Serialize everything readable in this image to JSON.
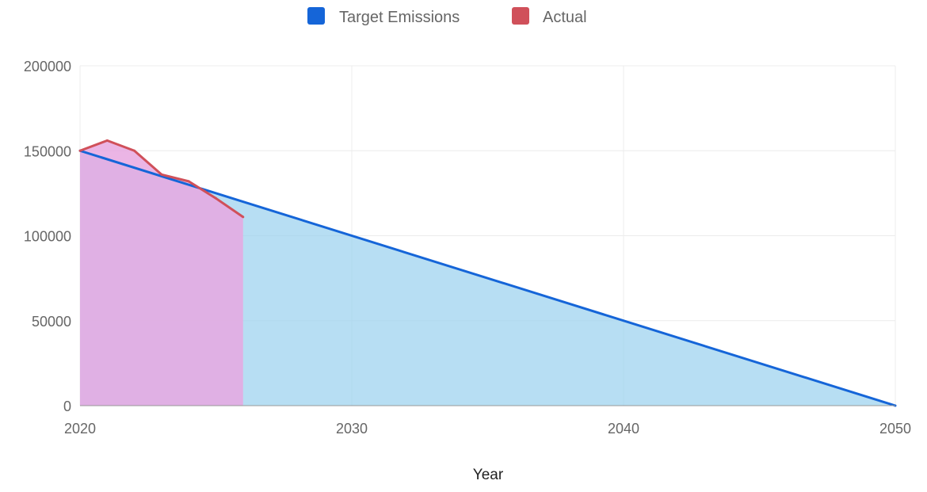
{
  "chart_data": {
    "type": "area",
    "title": "",
    "xlabel": "Year",
    "ylabel": "",
    "xlim": [
      2020,
      2050
    ],
    "ylim": [
      0,
      200000
    ],
    "x_ticks": [
      2020,
      2030,
      2040,
      2050
    ],
    "y_ticks": [
      0,
      50000,
      100000,
      150000,
      200000
    ],
    "x_tick_labels": [
      "2020",
      "2030",
      "2040",
      "2050"
    ],
    "y_tick_labels": [
      "0",
      "50000",
      "100000",
      "150000",
      "200000"
    ],
    "grid": true,
    "legend_position": "top",
    "series": [
      {
        "name": "Target Emissions",
        "color": "#1565d8",
        "fill": "#9fd3ef",
        "points": [
          [
            2020,
            150000
          ],
          [
            2050,
            0
          ]
        ]
      },
      {
        "name": "Actual",
        "color": "#d0505a",
        "fill": "#e8a8e0",
        "points": [
          [
            2020,
            150000
          ],
          [
            2021,
            156000
          ],
          [
            2022,
            150000
          ],
          [
            2023,
            136000
          ],
          [
            2024,
            132000
          ],
          [
            2025,
            122000
          ],
          [
            2026,
            111000
          ]
        ]
      }
    ]
  }
}
